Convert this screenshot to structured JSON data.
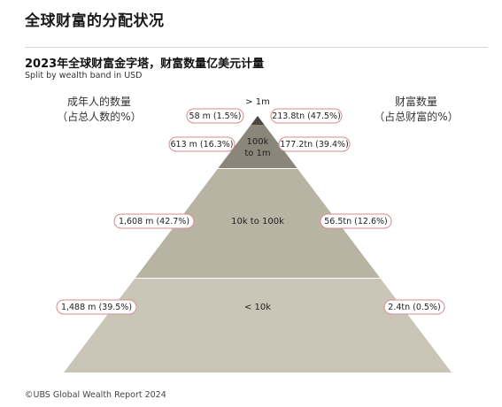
{
  "page_title": "全球财富的分配状况",
  "chart_data": {
    "type": "pyramid",
    "title": "2023年全球财富金字塔，财富数量亿美元计量",
    "subtitle": "Split by wealth band in USD",
    "left_header": [
      "成年人的数量",
      "（占总人数的%）"
    ],
    "right_header": [
      "财富数量",
      "（占总财富的%）"
    ],
    "tiers": [
      {
        "band": "> 1m",
        "adults": "58 m (1.5%)",
        "wealth": "213.8tn (47.5%)",
        "adults_m": 58,
        "adults_pct": 1.5,
        "wealth_tn": 213.8,
        "wealth_pct": 47.5
      },
      {
        "band": "100k to 1m",
        "band_lines": [
          "100k",
          "to 1m"
        ],
        "adults": "613 m (16.3%)",
        "wealth": "177.2tn (39.4%)",
        "adults_m": 613,
        "adults_pct": 16.3,
        "wealth_tn": 177.2,
        "wealth_pct": 39.4
      },
      {
        "band": "10k to 100k",
        "adults": "1,608 m (42.7%)",
        "wealth": "56.5tn (12.6%)",
        "adults_m": 1608,
        "adults_pct": 42.7,
        "wealth_tn": 56.5,
        "wealth_pct": 12.6
      },
      {
        "band": "< 10k",
        "adults": "1,488 m (39.5%)",
        "wealth": "2.4tn (0.5%)",
        "adults_m": 1488,
        "adults_pct": 39.5,
        "wealth_tn": 2.4,
        "wealth_pct": 0.5
      }
    ],
    "colors": {
      "tier_top": "#4a4840",
      "tier_upper": "#8a877a",
      "tier_middle": "#b8b4a3",
      "tier_bottom": "#c9c6b7",
      "pill_border": "#d98a8f"
    }
  },
  "footer": "©UBS Global Wealth Report 2024"
}
